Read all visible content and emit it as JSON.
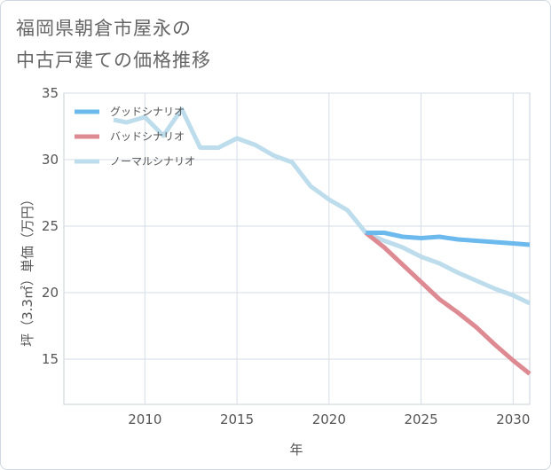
{
  "title_line1": "福岡県朝倉市屋永の",
  "title_line2": "中古戸建ての価格推移",
  "chart_data": {
    "type": "line",
    "xlabel": "年",
    "ylabel": "坪（3.3㎡）単価（万円）",
    "xlim": [
      2005.6,
      2030.9
    ],
    "ylim": [
      11.6,
      35
    ],
    "xticks": [
      2010,
      2015,
      2020,
      2025,
      2030
    ],
    "yticks": [
      15,
      20,
      25,
      30,
      35
    ],
    "legend_position": "top-left",
    "series": [
      {
        "name": "グッドシナリオ",
        "color": "#6cb9ee",
        "x": [
          2022,
          2023,
          2024,
          2025,
          2026,
          2027,
          2028,
          2029,
          2030,
          2030.9
        ],
        "values": [
          24.5,
          24.5,
          24.2,
          24.1,
          24.2,
          24.0,
          23.9,
          23.8,
          23.7,
          23.6
        ]
      },
      {
        "name": "バッドシナリオ",
        "color": "#de8a92",
        "x": [
          2022,
          2023,
          2024,
          2025,
          2026,
          2027,
          2028,
          2029,
          2030,
          2030.9
        ],
        "values": [
          24.5,
          23.4,
          22.1,
          20.8,
          19.5,
          18.5,
          17.4,
          16.1,
          14.9,
          13.9
        ]
      },
      {
        "name": "ノーマルシナリオ",
        "color": "#bddcec",
        "x": [
          2008.3,
          2009,
          2010,
          2011,
          2012,
          2013,
          2014,
          2015,
          2016,
          2017,
          2018,
          2019,
          2020,
          2021,
          2022,
          2023,
          2024,
          2025,
          2026,
          2027,
          2028,
          2029,
          2030,
          2030.9
        ],
        "values": [
          33.0,
          32.8,
          33.2,
          31.8,
          33.8,
          30.9,
          30.9,
          31.6,
          31.1,
          30.3,
          29.8,
          28.0,
          27.0,
          26.2,
          24.5,
          23.9,
          23.4,
          22.7,
          22.2,
          21.5,
          20.9,
          20.3,
          19.8,
          19.2
        ]
      }
    ]
  }
}
